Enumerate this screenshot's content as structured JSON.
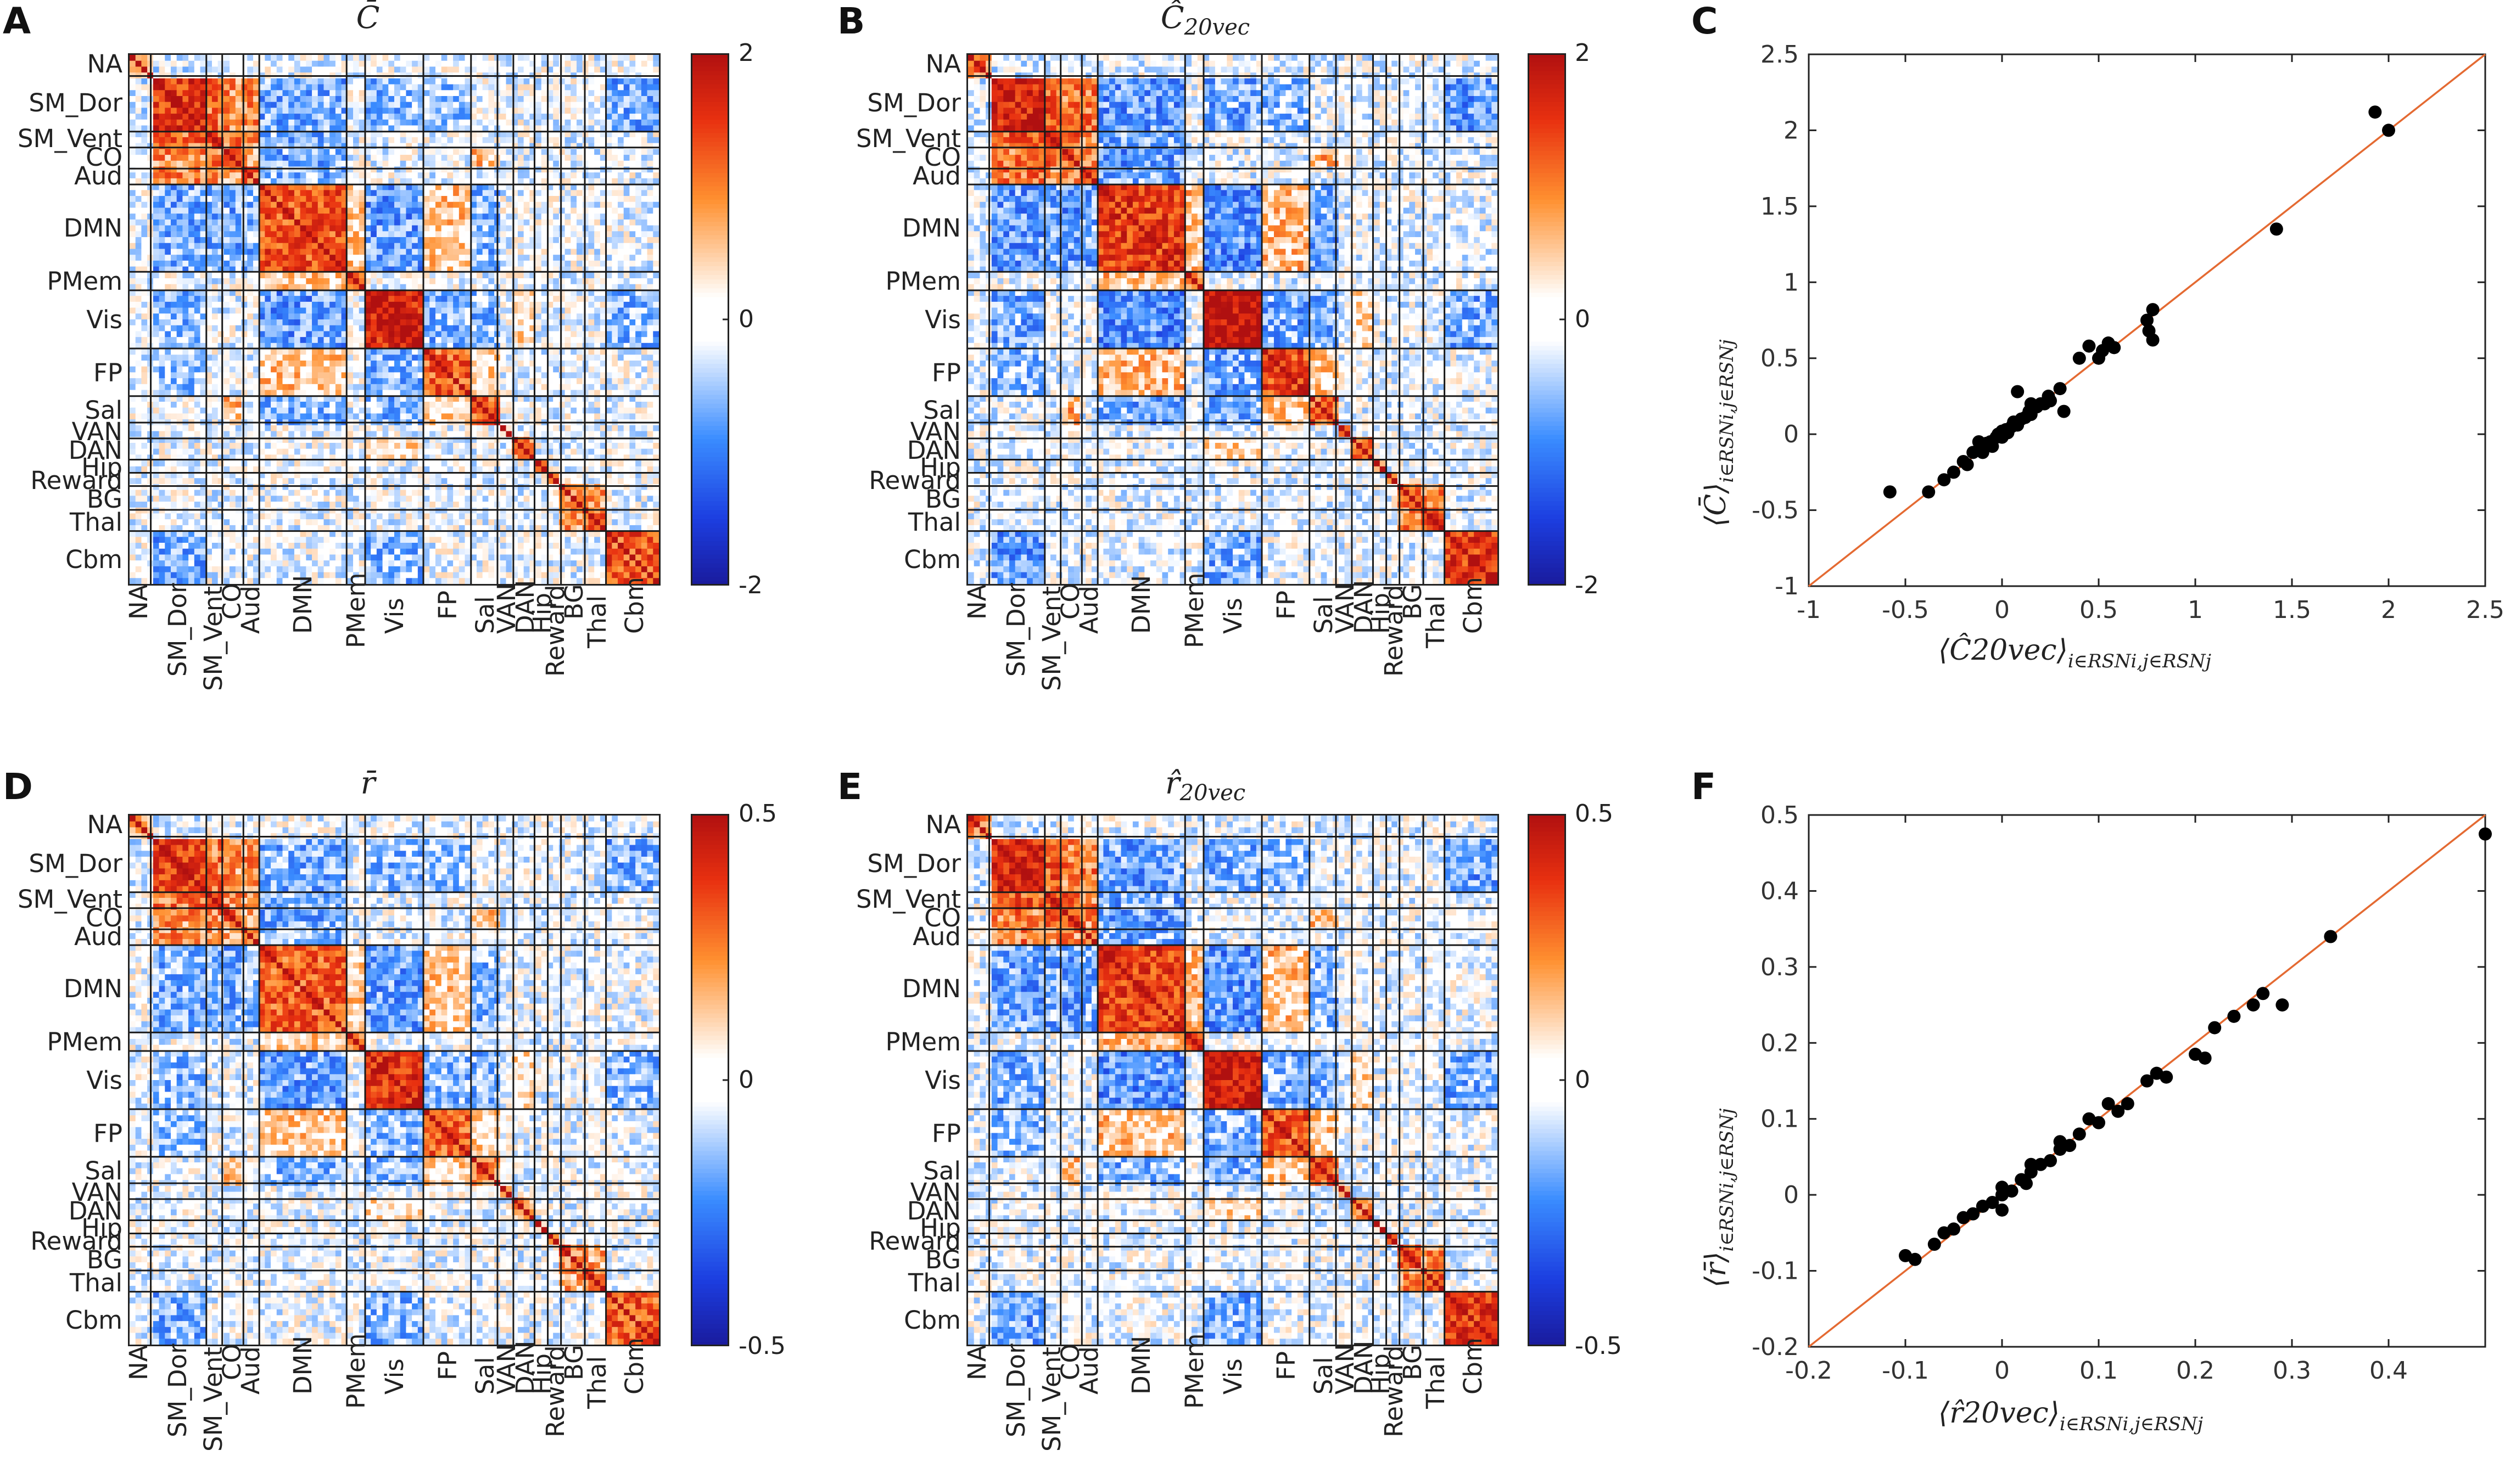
{
  "panel_letters": {
    "A": "A",
    "B": "B",
    "C": "C",
    "D": "D",
    "E": "E",
    "F": "F"
  },
  "titles": {
    "A": {
      "main": "C̄",
      "sub": ""
    },
    "B": {
      "main": "Ĉ",
      "sub": "20vec"
    },
    "D": {
      "main": "r̄",
      "sub": ""
    },
    "E": {
      "main": "r̂",
      "sub": "20vec"
    }
  },
  "networks": [
    "NA",
    "SM_Dor",
    "SM_Vent",
    "CO",
    "Aud",
    "DMN",
    "PMem",
    "Vis",
    "FP",
    "Sal",
    "VAN",
    "DAN",
    "Hip",
    "Reward",
    "BG",
    "Thal",
    "Cbm"
  ],
  "network_fraction_bounds": [
    0,
    0.04,
    0.145,
    0.175,
    0.215,
    0.245,
    0.41,
    0.445,
    0.555,
    0.645,
    0.695,
    0.725,
    0.765,
    0.79,
    0.815,
    0.86,
    0.9,
    1.0
  ],
  "colorbars": {
    "C": {
      "max_label": "2",
      "mid_label": "0",
      "min_label": "-2"
    },
    "r": {
      "max_label": "0.5",
      "mid_label": "0",
      "min_label": "-0.5"
    }
  },
  "colors": {
    "positive": "#b01010",
    "negative": "#1a1a9c",
    "neutral": "#ffffff",
    "orange": "#ff9030",
    "blue": "#3a8cff",
    "identity_line": "#e46a32",
    "points": "#000000"
  },
  "scatter_C": {
    "ylabel_main": "⟨C̄⟩",
    "ylabel_sub": "i∈RSNi,j∈RSNj",
    "xlabel_main": "⟨Ĉ20vec⟩",
    "xlabel_sub": "i∈RSNi,j∈RSNj",
    "x_ticks": [
      "-1",
      "-0.5",
      "0",
      "0.5",
      "1",
      "1.5",
      "2",
      "2.5"
    ],
    "y_ticks": [
      "-1",
      "-0.5",
      "0",
      "0.5",
      "1",
      "1.5",
      "2",
      "2.5"
    ]
  },
  "scatter_r": {
    "ylabel_main": "⟨r̄⟩",
    "ylabel_sub": "i∈RSNi,j∈RSNj",
    "xlabel_main": "⟨r̂20vec⟩",
    "xlabel_sub": "i∈RSNi,j∈RSNj",
    "x_ticks": [
      "-0.2",
      "-0.1",
      "0",
      "0.1",
      "0.2",
      "0.3",
      "0.4"
    ],
    "y_ticks": [
      "-0.2",
      "-0.1",
      "0",
      "0.1",
      "0.2",
      "0.3",
      "0.4",
      "0.5"
    ]
  },
  "chart_data": [
    {
      "type": "heatmap",
      "title": "C̄",
      "categories": [
        "NA",
        "SM_Dor",
        "SM_Vent",
        "CO",
        "Aud",
        "DMN",
        "PMem",
        "Vis",
        "FP",
        "Sal",
        "VAN",
        "DAN",
        "Hip",
        "Reward",
        "BG",
        "Thal",
        "Cbm"
      ],
      "colorbar_range": [
        -2,
        2
      ]
    },
    {
      "type": "heatmap",
      "title": "Ĉ20vec",
      "categories": [
        "NA",
        "SM_Dor",
        "SM_Vent",
        "CO",
        "Aud",
        "DMN",
        "PMem",
        "Vis",
        "FP",
        "Sal",
        "VAN",
        "DAN",
        "Hip",
        "Reward",
        "BG",
        "Thal",
        "Cbm"
      ],
      "colorbar_range": [
        -2,
        2
      ]
    },
    {
      "type": "scatter",
      "xlabel": "⟨Ĉ20vec⟩ i∈RSNi,j∈RSNj",
      "ylabel": "⟨C̄⟩ i∈RSNi,j∈RSNj",
      "xlim": [
        -1,
        2.5
      ],
      "ylim": [
        -1,
        2.5
      ],
      "identity_line": true,
      "points": [
        [
          -0.58,
          -0.38
        ],
        [
          -0.38,
          -0.38
        ],
        [
          -0.3,
          -0.3
        ],
        [
          -0.25,
          -0.25
        ],
        [
          -0.2,
          -0.18
        ],
        [
          -0.18,
          -0.2
        ],
        [
          -0.15,
          -0.12
        ],
        [
          -0.12,
          -0.1
        ],
        [
          -0.1,
          -0.12
        ],
        [
          -0.08,
          -0.06
        ],
        [
          -0.06,
          -0.05
        ],
        [
          -0.05,
          -0.08
        ],
        [
          -0.03,
          -0.02
        ],
        [
          -0.02,
          0.0
        ],
        [
          0.0,
          -0.02
        ],
        [
          0.0,
          0.02
        ],
        [
          0.02,
          0.03
        ],
        [
          0.03,
          0.01
        ],
        [
          0.05,
          0.05
        ],
        [
          0.06,
          0.08
        ],
        [
          0.08,
          0.06
        ],
        [
          0.1,
          0.1
        ],
        [
          0.12,
          0.11
        ],
        [
          0.14,
          0.15
        ],
        [
          0.15,
          0.13
        ],
        [
          0.18,
          0.18
        ],
        [
          0.2,
          0.2
        ],
        [
          0.22,
          0.2
        ],
        [
          0.24,
          0.25
        ],
        [
          0.25,
          0.22
        ],
        [
          0.3,
          0.3
        ],
        [
          0.32,
          0.15
        ],
        [
          0.4,
          0.5
        ],
        [
          0.45,
          0.58
        ],
        [
          0.5,
          0.5
        ],
        [
          0.52,
          0.55
        ],
        [
          0.55,
          0.6
        ],
        [
          0.58,
          0.57
        ],
        [
          0.75,
          0.75
        ],
        [
          0.78,
          0.82
        ],
        [
          0.76,
          0.68
        ],
        [
          0.78,
          0.62
        ],
        [
          1.42,
          1.35
        ],
        [
          1.93,
          2.12
        ],
        [
          2.0,
          2.0
        ],
        [
          0.08,
          0.28
        ],
        [
          -0.12,
          -0.05
        ],
        [
          0.15,
          0.2
        ]
      ]
    },
    {
      "type": "heatmap",
      "title": "r̄",
      "categories": [
        "NA",
        "SM_Dor",
        "SM_Vent",
        "CO",
        "Aud",
        "DMN",
        "PMem",
        "Vis",
        "FP",
        "Sal",
        "VAN",
        "DAN",
        "Hip",
        "Reward",
        "BG",
        "Thal",
        "Cbm"
      ],
      "colorbar_range": [
        -0.5,
        0.5
      ]
    },
    {
      "type": "heatmap",
      "title": "r̂20vec",
      "categories": [
        "NA",
        "SM_Dor",
        "SM_Vent",
        "CO",
        "Aud",
        "DMN",
        "PMem",
        "Vis",
        "FP",
        "Sal",
        "VAN",
        "DAN",
        "Hip",
        "Reward",
        "BG",
        "Thal",
        "Cbm"
      ],
      "colorbar_range": [
        -0.5,
        0.5
      ]
    },
    {
      "type": "scatter",
      "xlabel": "⟨r̂20vec⟩ i∈RSNi,j∈RSNj",
      "ylabel": "⟨r̄⟩ i∈RSNi,j∈RSNj",
      "xlim": [
        -0.2,
        0.5
      ],
      "ylim": [
        -0.2,
        0.5
      ],
      "identity_line": true,
      "points": [
        [
          -0.1,
          -0.08
        ],
        [
          -0.09,
          -0.085
        ],
        [
          -0.07,
          -0.065
        ],
        [
          -0.06,
          -0.05
        ],
        [
          -0.05,
          -0.045
        ],
        [
          -0.04,
          -0.03
        ],
        [
          -0.03,
          -0.025
        ],
        [
          -0.02,
          -0.015
        ],
        [
          -0.01,
          -0.01
        ],
        [
          0.0,
          0.0
        ],
        [
          0.0,
          0.01
        ],
        [
          0.01,
          0.005
        ],
        [
          0.02,
          0.02
        ],
        [
          0.025,
          0.015
        ],
        [
          0.03,
          0.03
        ],
        [
          0.04,
          0.04
        ],
        [
          0.05,
          0.045
        ],
        [
          0.06,
          0.06
        ],
        [
          0.07,
          0.065
        ],
        [
          0.08,
          0.08
        ],
        [
          0.09,
          0.1
        ],
        [
          0.1,
          0.095
        ],
        [
          0.11,
          0.12
        ],
        [
          0.12,
          0.11
        ],
        [
          0.13,
          0.12
        ],
        [
          0.15,
          0.15
        ],
        [
          0.16,
          0.16
        ],
        [
          0.17,
          0.155
        ],
        [
          0.2,
          0.185
        ],
        [
          0.21,
          0.18
        ],
        [
          0.22,
          0.22
        ],
        [
          0.24,
          0.235
        ],
        [
          0.26,
          0.25
        ],
        [
          0.27,
          0.265
        ],
        [
          0.29,
          0.25
        ],
        [
          0.34,
          0.34
        ],
        [
          0.5,
          0.475
        ],
        [
          0.0,
          -0.02
        ],
        [
          0.03,
          0.04
        ],
        [
          0.06,
          0.07
        ]
      ]
    }
  ]
}
